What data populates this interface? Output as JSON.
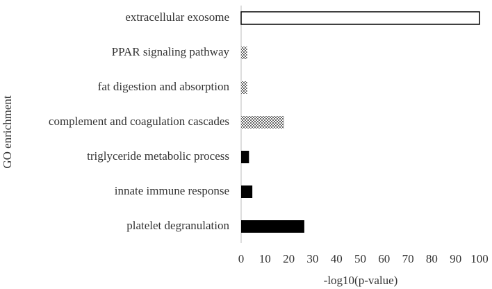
{
  "chart_data": {
    "type": "barh",
    "xlabel": "-log10(p-value)",
    "ylabel": "GO enrichment",
    "categories": [
      "extracellular exosome",
      "PPAR signaling pathway",
      "fat digestion and absorption",
      "complement and coagulation cascades",
      "triglyceride metabolic process",
      "innate immune response",
      "platelet degranulation"
    ],
    "values": [
      100,
      2.5,
      2.5,
      18,
      3.3,
      4.7,
      26.5
    ],
    "fills": [
      "outline",
      "checker",
      "checker",
      "checker",
      "solid",
      "solid",
      "solid"
    ],
    "xlim": [
      0,
      100
    ],
    "xticks": [
      0,
      10,
      20,
      30,
      40,
      50,
      60,
      70,
      80,
      90,
      100
    ]
  }
}
